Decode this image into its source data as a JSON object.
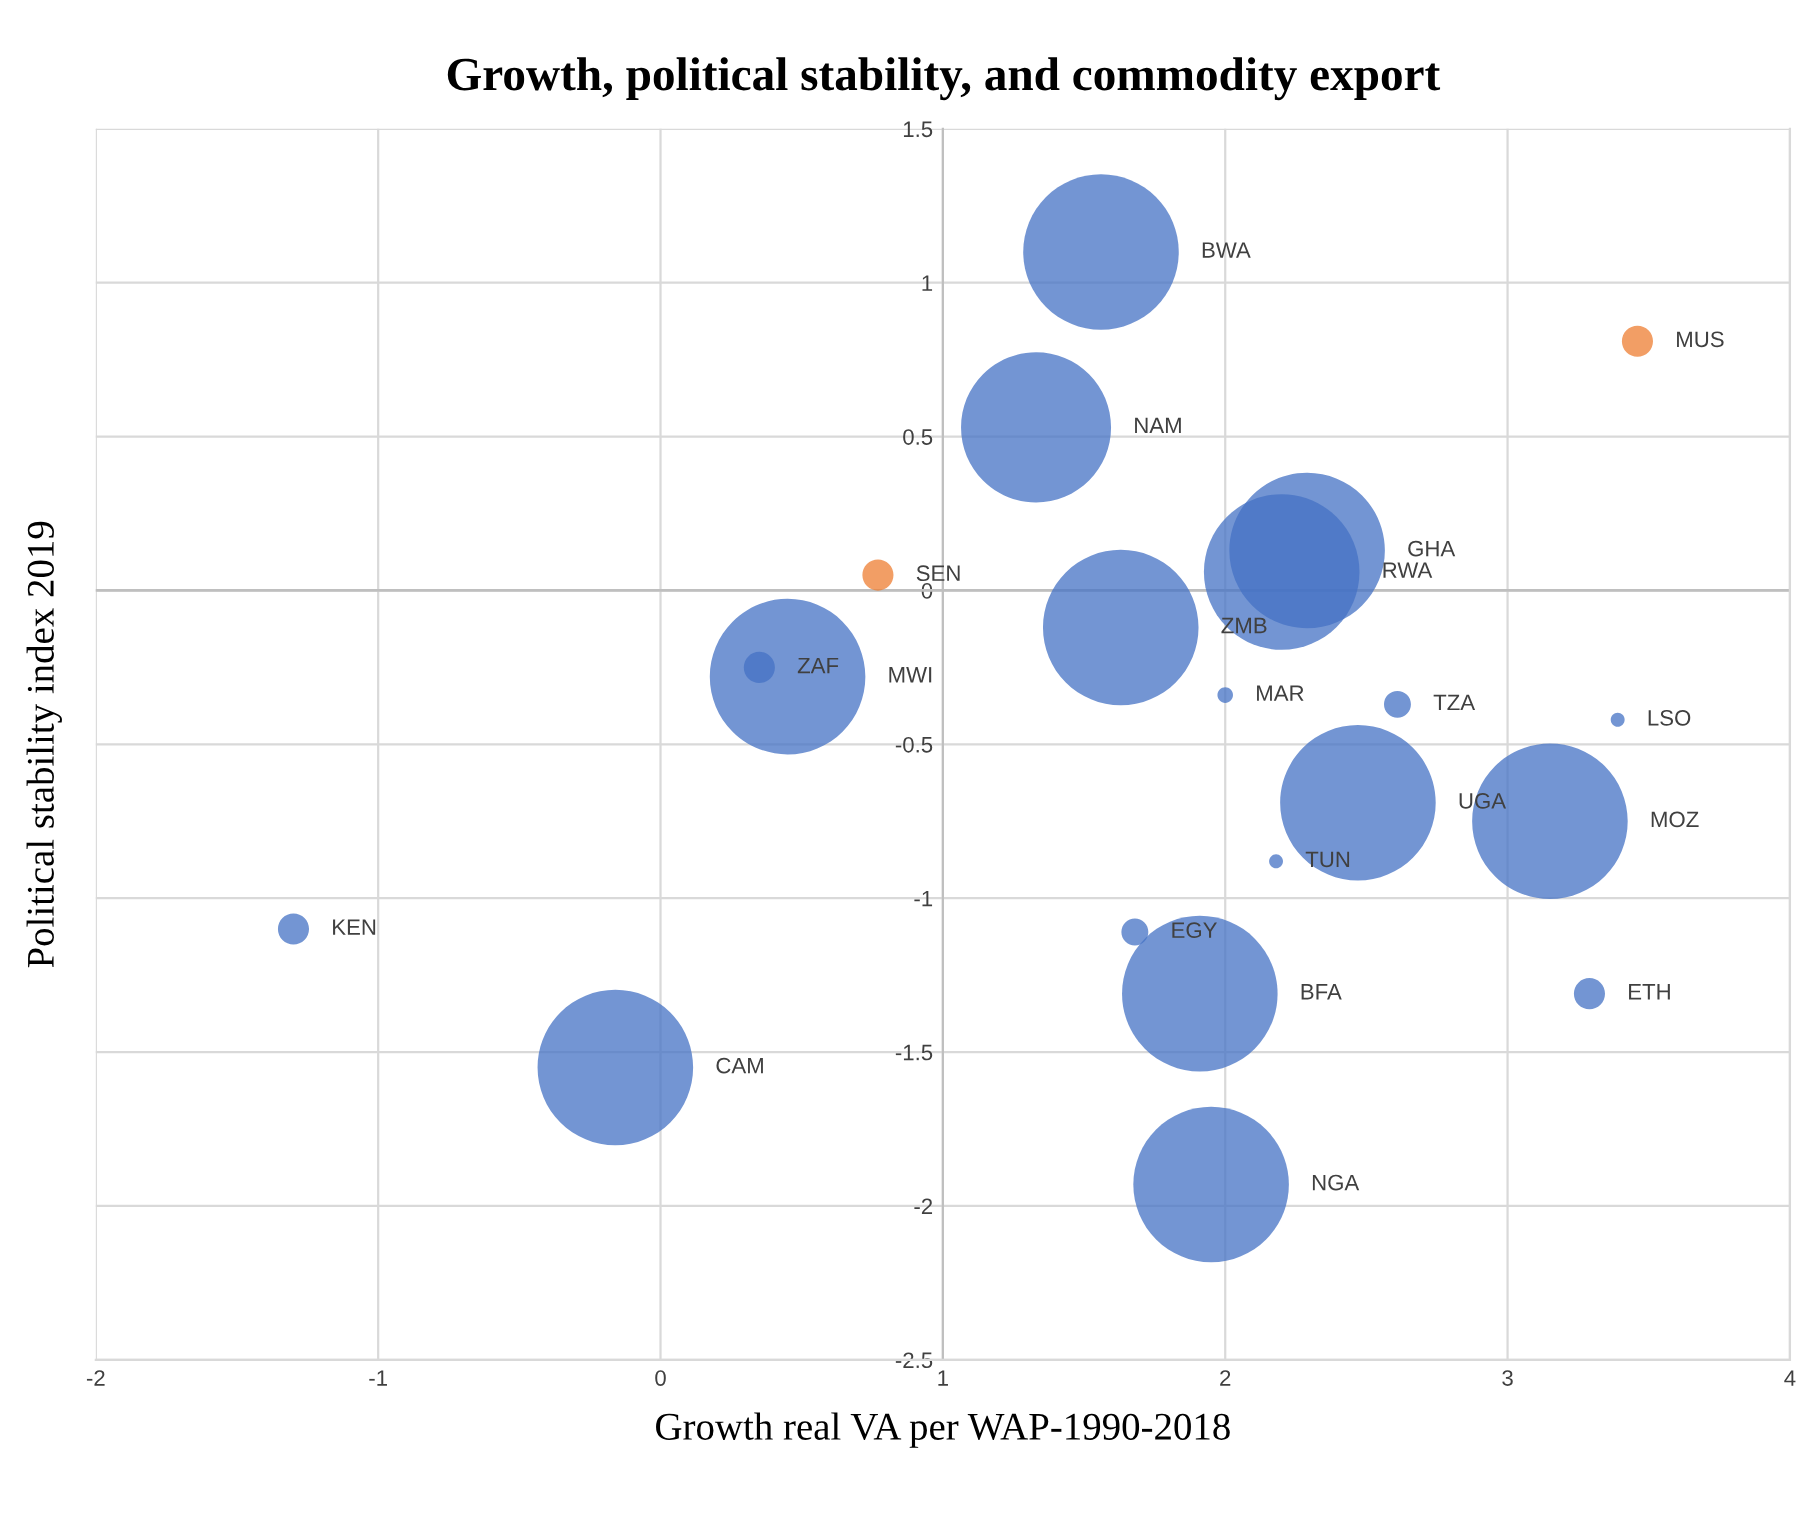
{
  "chart_data": {
    "type": "bubble",
    "title": "Growth, political stability, and commodity export",
    "xlabel": "Growth real VA per WAP-1990-2018",
    "ylabel": "Political stability index 2019",
    "series": [
      {
        "color": "#4472c4",
        "x": [
          1.56,
          1.33,
          2.29,
          2.2,
          1.63,
          0.45,
          0.35,
          2.0,
          2.61,
          3.39,
          2.47,
          3.15,
          2.18,
          -1.3,
          1.68,
          1.91,
          3.29,
          -0.16,
          1.95
        ],
        "values": [
          1.1,
          0.53,
          0.13,
          0.06,
          -0.12,
          -0.28,
          -0.25,
          -0.34,
          -0.37,
          -0.42,
          -0.69,
          -0.75,
          -0.88,
          -1.1,
          -1.11,
          -1.31,
          -1.31,
          -1.55,
          -1.93
        ],
        "sizes": [
          1,
          0.93,
          1,
          1,
          1,
          1,
          0.04,
          0.01,
          0.03,
          0.008,
          1,
          1,
          0.008,
          0.04,
          0.03,
          1,
          0.04,
          1,
          1
        ],
        "value_labels": [
          "BWA",
          "NAM",
          "GHA",
          "RWA",
          "ZMB",
          "MWI",
          "ZAF",
          "MAR",
          "TZA",
          "LSO",
          "UGA",
          "MOZ",
          "TUN",
          "KEN",
          "EGY",
          "BFA",
          "ETH",
          "CAM",
          "NGA"
        ]
      },
      {
        "color": "#ed7d31",
        "x": [
          0.77,
          3.46
        ],
        "values": [
          0.05,
          0.81
        ],
        "sizes": [
          0.04,
          0.04
        ],
        "value_labels": [
          "SEN",
          "MUS"
        ]
      }
    ],
    "xlim": [
      -2,
      4
    ],
    "xticks": [
      -2,
      -1,
      0,
      1,
      2,
      3,
      4
    ],
    "ylim": [
      -2.5,
      1.5
    ],
    "yticks": [
      -2.5,
      -2,
      -1.5,
      -1,
      -0.5,
      0,
      0.5,
      1,
      1.5
    ],
    "grid": true,
    "legend": false
  }
}
